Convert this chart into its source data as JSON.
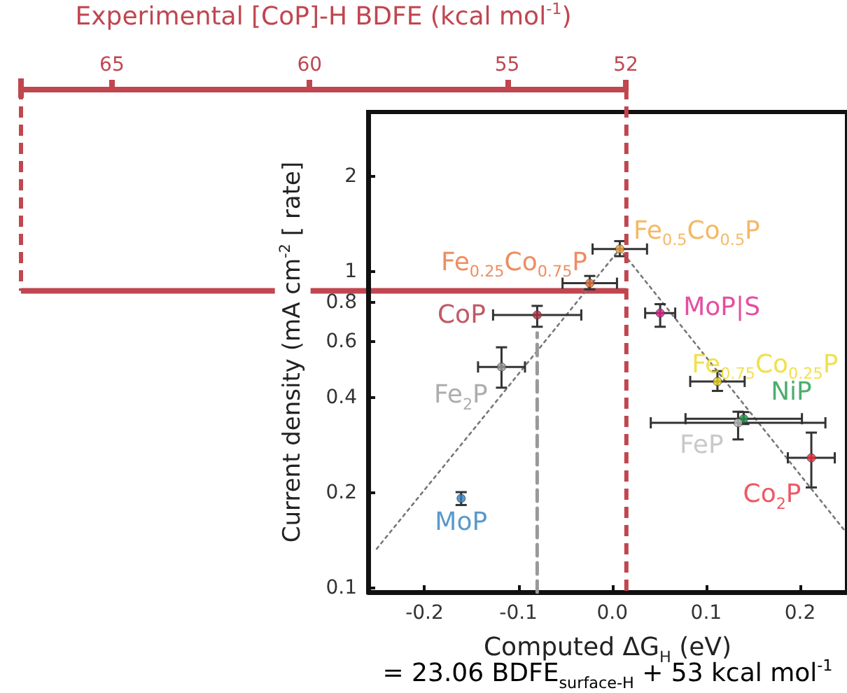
{
  "chart_data": {
    "type": "scatter",
    "xlabel": "Computed ΔG$_{H}$ (eV)",
    "ylabel": "Current density (mA cm$^{-2}$ [ rate]",
    "x2label": "Experimental [CoP]-H BDFE (kcal mol$^{-1}$)",
    "annotations": [
      "= 23.06 BDFE$_{surface-H}$ + 53 kcal mol$^{-1}$"
    ],
    "xlim": [
      -0.26,
      0.25
    ],
    "xticks": [
      -0.2,
      -0.1,
      {
        "value": 0,
        "label": "0.0"
      },
      0.1,
      0.2
    ],
    "ylim": [
      0.097,
      3.2
    ],
    "yticks": [
      0.1,
      0.2,
      0.4,
      0.6,
      0.8,
      1,
      2
    ],
    "log": "y",
    "x2lim": [
      67.3,
      52
    ],
    "x2ticks": [
      65,
      60,
      55,
      52
    ],
    "marker": "circle",
    "ref_lines": [
      {
        "axis": "x",
        "value": 0.015,
        "color": "#c0464f",
        "line_style": "dashed"
      },
      {
        "axis": "y",
        "value": 0.87,
        "color": "#c0464f",
        "line_style": "solid"
      }
    ],
    "series": [
      {
        "name": "MoP",
        "color": "#2f7fc1",
        "x": [
          -0.161
        ],
        "values": [
          0.192
        ],
        "errors": [
          [
            0.183,
            0.201
          ]
        ]
      },
      {
        "name": "Fe$_{2}$P",
        "color": "#999999",
        "x": [
          -0.118
        ],
        "values": [
          0.5
        ],
        "errors": [
          [
            0.43,
            0.577
          ]
        ],
        "xerrors": [
          0.025
        ]
      },
      {
        "name": "CoP",
        "color": "#b03040",
        "x": [
          -0.08
        ],
        "values": [
          0.73
        ],
        "errors": [
          [
            0.67,
            0.78
          ]
        ],
        "xerrors": [
          0.047
        ]
      },
      {
        "name": "Fe$_{0.25}$Co$_{0.75}$P",
        "color": "#e8703a",
        "x": [
          -0.024
        ],
        "values": [
          0.92
        ],
        "errors": [
          [
            0.88,
            0.97
          ]
        ],
        "xerrors": [
          0.029
        ]
      },
      {
        "name": "Fe$_{0.5}$Co$_{0.5}$P",
        "color": "#f0a840",
        "x": [
          0.008
        ],
        "values": [
          1.18
        ],
        "errors": [
          [
            1.12,
            1.25
          ]
        ],
        "xerrors": [
          0.029
        ]
      },
      {
        "name": "MoP|S",
        "color": "#e0208a",
        "x": [
          0.051
        ],
        "values": [
          0.74
        ],
        "errors": [
          [
            0.67,
            0.79
          ]
        ],
        "xerrors": [
          0.016
        ]
      },
      {
        "name": "Fe$_{0.75}$Co$_{0.25}$P",
        "color": "#eed820",
        "x": [
          0.112
        ],
        "values": [
          0.45
        ],
        "errors": [
          [
            0.42,
            0.485
          ]
        ],
        "xerrors": [
          0.029
        ]
      },
      {
        "name": "NiP",
        "color": "#1e9a4a",
        "x": [
          0.14
        ],
        "values": [
          0.343
        ],
        "errors": [
          [
            0.33,
            0.36
          ]
        ],
        "xerrors": [
          0.062
        ]
      },
      {
        "name": "FeP",
        "color": "#bbbbbb",
        "x": [
          0.134
        ],
        "values": [
          0.333
        ],
        "errors": [
          [
            0.295,
            0.361
          ]
        ],
        "xerrors": [
          0.093
        ]
      },
      {
        "name": "Co$_{2}$P",
        "color": "#e83040",
        "x": [
          0.212
        ],
        "values": [
          0.258
        ],
        "errors": [
          [
            0.208,
            0.31
          ]
        ],
        "xerrors": [
          0.025
        ]
      },
      {
        "type": "line",
        "color": "#777777",
        "line_style": "dotted",
        "marker": "none",
        "x": [
          -0.251,
          0.008,
          0.249
        ],
        "values": [
          0.133,
          1.18,
          0.15
        ]
      },
      {
        "type": "line",
        "color": "#999999",
        "line_style": "dashed",
        "marker": "none",
        "x": [
          -0.08,
          -0.08
        ],
        "values": [
          0.097,
          0.64
        ]
      }
    ]
  }
}
